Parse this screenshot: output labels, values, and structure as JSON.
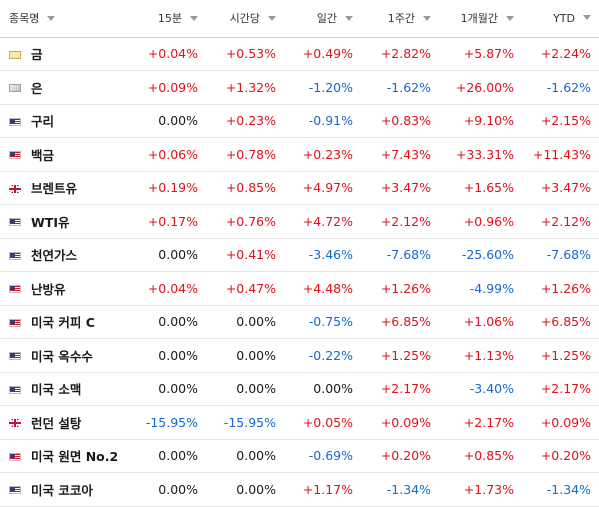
{
  "headers": [
    "종목명",
    "15분",
    "시간당",
    "일간",
    "1주간",
    "1개월간",
    "YTD"
  ],
  "colors": {
    "positive": "#e0111b",
    "negative": "#1468d6",
    "neutral": "#1a1a1a"
  },
  "rows": [
    {
      "flag": "gold-icon",
      "name": "금",
      "values": [
        "+0.04%",
        "+0.53%",
        "+0.49%",
        "+2.82%",
        "+5.87%",
        "+2.24%"
      ]
    },
    {
      "flag": "silver-icon",
      "name": "은",
      "values": [
        "+0.09%",
        "+1.32%",
        "-1.20%",
        "-1.62%",
        "+26.00%",
        "-1.62%"
      ]
    },
    {
      "flag": "us-flag-icon",
      "name": "구리",
      "values": [
        "0.00%",
        "+0.23%",
        "-0.91%",
        "+0.83%",
        "+9.10%",
        "+2.15%"
      ]
    },
    {
      "flag": "us-flag-icon",
      "name": "백금",
      "values": [
        "+0.06%",
        "+0.78%",
        "+0.23%",
        "+7.43%",
        "+33.31%",
        "+11.43%"
      ]
    },
    {
      "flag": "uk-flag-icon",
      "name": "브렌트유",
      "values": [
        "+0.19%",
        "+0.85%",
        "+4.97%",
        "+3.47%",
        "+1.65%",
        "+3.47%"
      ]
    },
    {
      "flag": "us-flag-icon",
      "name": "WTI유",
      "values": [
        "+0.17%",
        "+0.76%",
        "+4.72%",
        "+2.12%",
        "+0.96%",
        "+2.12%"
      ]
    },
    {
      "flag": "us-flag-icon",
      "name": "천연가스",
      "values": [
        "0.00%",
        "+0.41%",
        "-3.46%",
        "-7.68%",
        "-25.60%",
        "-7.68%"
      ]
    },
    {
      "flag": "us-flag-icon",
      "name": "난방유",
      "values": [
        "+0.04%",
        "+0.47%",
        "+4.48%",
        "+1.26%",
        "-4.99%",
        "+1.26%"
      ]
    },
    {
      "flag": "us-flag-icon",
      "name": "미국 커피 C",
      "values": [
        "0.00%",
        "0.00%",
        "-0.75%",
        "+6.85%",
        "+1.06%",
        "+6.85%"
      ]
    },
    {
      "flag": "us-flag-icon",
      "name": "미국 옥수수",
      "values": [
        "0.00%",
        "0.00%",
        "-0.22%",
        "+1.25%",
        "+1.13%",
        "+1.25%"
      ]
    },
    {
      "flag": "us-flag-icon",
      "name": "미국 소맥",
      "values": [
        "0.00%",
        "0.00%",
        "0.00%",
        "+2.17%",
        "-3.40%",
        "+2.17%"
      ]
    },
    {
      "flag": "uk-flag-icon",
      "name": "런던 설탕",
      "values": [
        "-15.95%",
        "-15.95%",
        "+0.05%",
        "+0.09%",
        "+2.17%",
        "+0.09%"
      ]
    },
    {
      "flag": "us-flag-icon",
      "name": "미국 원면 No.2",
      "values": [
        "0.00%",
        "0.00%",
        "-0.69%",
        "+0.20%",
        "+0.85%",
        "+0.20%"
      ]
    },
    {
      "flag": "us-flag-icon",
      "name": "미국 코코아",
      "values": [
        "0.00%",
        "0.00%",
        "+1.17%",
        "-1.34%",
        "+1.73%",
        "-1.34%"
      ]
    }
  ]
}
